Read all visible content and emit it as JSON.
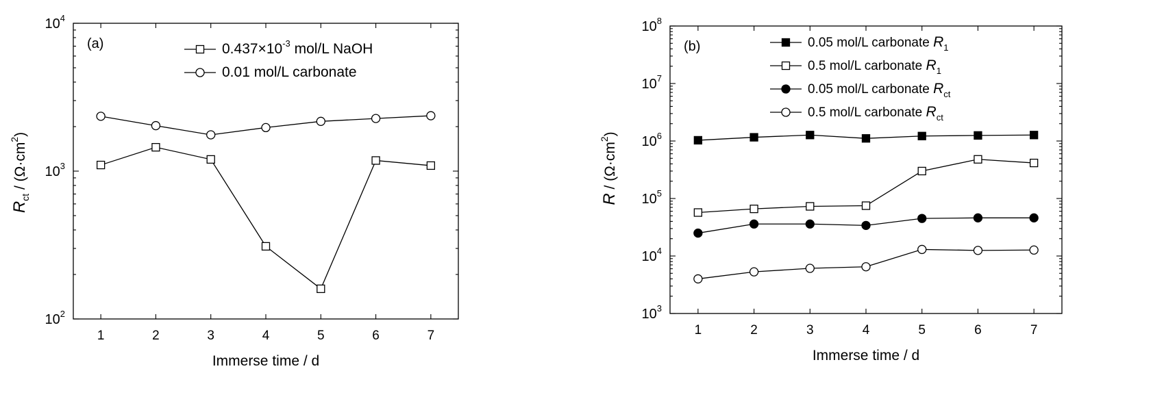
{
  "chart_data": [
    {
      "type": "line",
      "panel_label": "(a)",
      "y_scale": "log",
      "xlabel": "Immerse time / d",
      "ylabel": {
        "main": "R",
        "sub": "ct",
        "rest": " / (Ω·cm",
        "sup": "2",
        "close": ")"
      },
      "x_ticks": [
        "1",
        "2",
        "3",
        "4",
        "5",
        "6",
        "7"
      ],
      "y_ticks": [
        {
          "base": "10",
          "exp": "2"
        },
        {
          "base": "10",
          "exp": "3"
        },
        {
          "base": "10",
          "exp": "4"
        }
      ],
      "xlim": [
        0.5,
        7.5
      ],
      "ylim": [
        100,
        10000
      ],
      "grid": false,
      "legend_position": "top-right",
      "x": [
        1,
        2,
        3,
        4,
        5,
        6,
        7
      ],
      "series": [
        {
          "legend": {
            "pre": "0.437×10",
            "sup": "-3",
            "post": " mol/L NaOH"
          },
          "marker": "open-square",
          "values": [
            1100,
            1450,
            1200,
            310,
            160,
            1180,
            1090
          ]
        },
        {
          "legend": {
            "pre": "0.01 mol/L carbonate"
          },
          "marker": "open-circle",
          "values": [
            2350,
            2030,
            1760,
            1970,
            2170,
            2270,
            2370
          ]
        }
      ]
    },
    {
      "type": "line",
      "panel_label": "(b)",
      "y_scale": "log",
      "xlabel": "Immerse time / d",
      "ylabel": {
        "main": "R",
        "sub": "",
        "rest": " / (Ω·cm",
        "sup": "2",
        "close": ")"
      },
      "x_ticks": [
        "1",
        "2",
        "3",
        "4",
        "5",
        "6",
        "7"
      ],
      "y_ticks": [
        {
          "base": "10",
          "exp": "3"
        },
        {
          "base": "10",
          "exp": "4"
        },
        {
          "base": "10",
          "exp": "5"
        },
        {
          "base": "10",
          "exp": "6"
        },
        {
          "base": "10",
          "exp": "7"
        },
        {
          "base": "10",
          "exp": "8"
        }
      ],
      "xlim": [
        0.5,
        7.5
      ],
      "ylim": [
        1000,
        100000000
      ],
      "grid": false,
      "legend_position": "top-right",
      "x": [
        1,
        2,
        3,
        4,
        5,
        6,
        7
      ],
      "series": [
        {
          "legend": {
            "pre": "0.05 mol/L carbonate ",
            "ital": "R",
            "sub": "1"
          },
          "marker": "filled-square",
          "values": [
            1030000,
            1160000,
            1270000,
            1110000,
            1220000,
            1250000,
            1270000
          ]
        },
        {
          "legend": {
            "pre": "0.5 mol/L carbonate ",
            "ital": "R",
            "sub": "1"
          },
          "marker": "open-square",
          "values": [
            57000,
            66000,
            73000,
            75000,
            300000,
            480000,
            415000
          ]
        },
        {
          "legend": {
            "pre": "0.05 mol/L carbonate ",
            "ital": "R",
            "sub": "ct"
          },
          "marker": "filled-circle",
          "values": [
            25000,
            36000,
            36000,
            34000,
            45000,
            46000,
            46000
          ]
        },
        {
          "legend": {
            "pre": "0.5 mol/L carbonate ",
            "ital": "R",
            "sub": "ct"
          },
          "marker": "open-circle",
          "values": [
            4000,
            5300,
            6100,
            6500,
            13000,
            12500,
            12700
          ]
        }
      ]
    }
  ]
}
